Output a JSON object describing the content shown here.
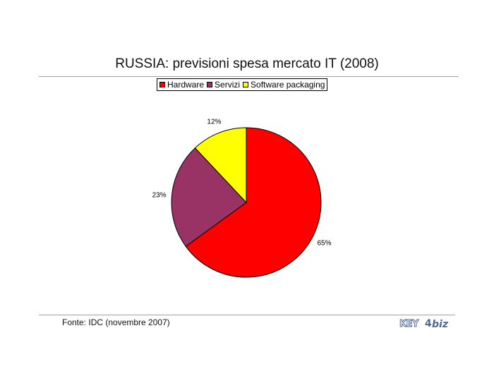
{
  "chart_data": {
    "type": "pie",
    "title": "RUSSIA: previsioni spesa mercato IT (2008)",
    "categories": [
      "Hardware",
      "Servizi",
      "Software packaging"
    ],
    "values": [
      65,
      23,
      12
    ],
    "data_labels": [
      "65%",
      "23%",
      "12%"
    ],
    "colors": [
      "#ff0000",
      "#993366",
      "#ffff00"
    ],
    "legend_position": "top",
    "start_angle": "12 o'clock",
    "direction": "clockwise"
  },
  "source": "Fonte: IDC (novembre 2007)",
  "logo": {
    "key": "KEY",
    "num": "4",
    "biz": "biz"
  }
}
